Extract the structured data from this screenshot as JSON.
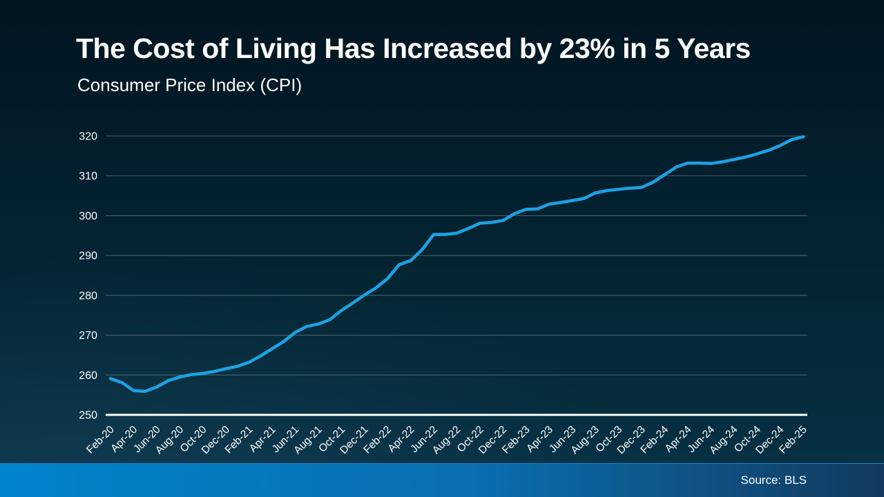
{
  "header": {
    "title": "The Cost of Living Has Increased by 23% in 5 Years",
    "subtitle": "Consumer Price Index (CPI)"
  },
  "footer": {
    "source": "Source: BLS"
  },
  "colors": {
    "line": "#1CA2E3",
    "grid": "#8C979E",
    "axis": "#FFFFFF",
    "text": "#FFFFFF",
    "background_top": "#021520",
    "background_bottom": "#083247",
    "footer_bar_left": "#0084CC",
    "footer_bar_right": "#123A5E"
  },
  "chart_data": {
    "type": "line",
    "title": "The Cost of Living Has Increased by 23% in 5 Years",
    "subtitle": "Consumer Price Index (CPI)",
    "xlabel": "",
    "ylabel": "",
    "ylim": [
      250,
      320
    ],
    "y_tick_labels": [
      "250",
      "260",
      "270",
      "280",
      "290",
      "300",
      "310",
      "320"
    ],
    "grid": true,
    "legend_position": "none",
    "x_interval": "monthly, labeled every 2 months",
    "x_tick_labels": [
      "Feb-20",
      "Apr-20",
      "Jun-20",
      "Aug-20",
      "Oct-20",
      "Dec-20",
      "Feb-21",
      "Apr-21",
      "Jun-21",
      "Aug-21",
      "Oct-21",
      "Dec-21",
      "Feb-22",
      "Apr-22",
      "Jun-22",
      "Aug-22",
      "Oct-22",
      "Dec-22",
      "Feb-23",
      "Apr-23",
      "Jun-23",
      "Aug-23",
      "Oct-23",
      "Dec-23",
      "Feb-24",
      "Apr-24",
      "Jun-24",
      "Aug-24",
      "Oct-24",
      "Dec-24",
      "Feb-25"
    ],
    "series": [
      {
        "name": "Consumer Price Index (CPI)",
        "values": [
          259.1,
          258.1,
          256.1,
          255.9,
          257.0,
          258.6,
          259.5,
          260.1,
          260.4,
          260.9,
          261.6,
          262.2,
          263.2,
          264.8,
          266.6,
          268.4,
          270.7,
          272.2,
          272.8,
          273.9,
          276.2,
          278.1,
          280.1,
          281.9,
          284.2,
          287.7,
          288.7,
          291.5,
          295.3,
          295.3,
          295.6,
          296.8,
          298.1,
          298.3,
          298.8,
          300.5,
          301.6,
          301.7,
          302.9,
          303.3,
          303.8,
          304.3,
          305.7,
          306.3,
          306.6,
          306.9,
          307.1,
          308.4,
          310.3,
          312.2,
          313.2,
          313.2,
          313.1,
          313.5,
          314.1,
          314.7,
          315.5,
          316.4,
          317.6,
          319.1,
          319.8
        ]
      }
    ]
  }
}
